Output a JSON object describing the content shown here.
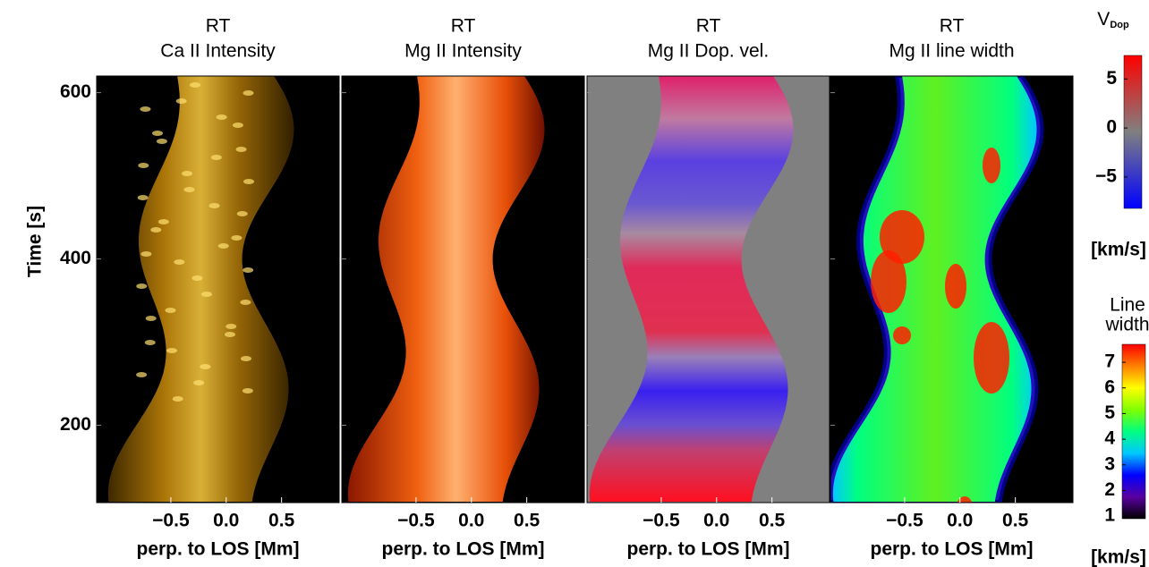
{
  "chart_data": [
    {
      "type": "image",
      "title": "RT",
      "subtitle": "Ca II Intensity",
      "xlabel": "perp. to LOS [Mm]",
      "ylabel": "Time [s]",
      "xlim": [
        -1.17,
        1.02
      ],
      "xticks": [
        {
          "value": -0.5,
          "label": "−0.5"
        },
        {
          "value": 0,
          "label": "0.0"
        },
        0.5
      ],
      "ylim": [
        107,
        620
      ],
      "yticks": [
        200,
        400,
        600
      ]
    },
    {
      "type": "image",
      "title": "RT",
      "subtitle": "Mg II Intensity",
      "xlabel": "perp. to LOS [Mm]",
      "xlim": [
        -1.17,
        1.02
      ],
      "xticks": [
        {
          "value": -0.5,
          "label": "−0.5"
        },
        {
          "value": 0,
          "label": "0.0"
        },
        0.5
      ]
    },
    {
      "type": "image",
      "title": "RT",
      "subtitle": "Mg II Dop. vel.",
      "xlabel": "perp. to LOS [Mm]",
      "xlim": [
        -1.17,
        1.02
      ],
      "xticks": [
        {
          "value": -0.5,
          "label": "−0.5"
        },
        {
          "value": 0,
          "label": "0.0"
        },
        0.5
      ]
    },
    {
      "type": "image",
      "title": "RT",
      "subtitle": "Mg II line width",
      "xlabel": "perp. to LOS [Mm]",
      "xlim": [
        -1.17,
        1.02
      ],
      "xticks": [
        {
          "value": -0.5,
          "label": "−0.5"
        },
        {
          "value": 0,
          "label": "0.0"
        },
        0.5
      ]
    },
    {
      "type": "colorbar",
      "title": "V",
      "title_sub": "Dop",
      "units": "[km/s]",
      "colors": [
        "#0000ff",
        "#808080",
        "#ff0000"
      ],
      "ylim": [
        -8.2,
        7.4
      ],
      "yticks": [
        {
          "value": -5,
          "label": "−5"
        },
        0,
        5
      ]
    },
    {
      "type": "colorbar",
      "title_lines": [
        "Line",
        "width"
      ],
      "units": "[km/s]",
      "colors": [
        "#000000",
        "#5a00a0",
        "#0000ff",
        "#00c8ff",
        "#00ff80",
        "#80ff00",
        "#ffff00",
        "#ff8000",
        "#ff0000"
      ],
      "ylim": [
        0.9,
        7.7
      ],
      "yticks": [
        1,
        2,
        3,
        4,
        5,
        6,
        7
      ]
    }
  ]
}
